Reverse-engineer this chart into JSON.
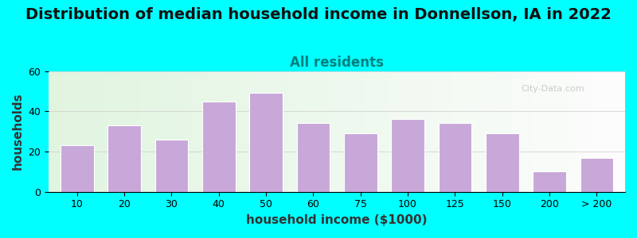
{
  "title": "Distribution of median household income in Donnellson, IA in 2022",
  "subtitle": "All residents",
  "xlabel": "household income ($1000)",
  "ylabel": "households",
  "background_outer": "#00FFFF",
  "background_inner_left": "#d8f0d0",
  "background_inner_right": "#f8f8f8",
  "bar_color": "#c8a8d8",
  "bar_edge_color": "#ffffff",
  "categories": [
    "10",
    "20",
    "30",
    "40",
    "50",
    "60",
    "75",
    "100",
    "125",
    "150",
    "200",
    "> 200"
  ],
  "values": [
    23,
    33,
    26,
    45,
    49,
    34,
    29,
    36,
    34,
    29,
    10,
    17
  ],
  "ylim": [
    0,
    60
  ],
  "yticks": [
    0,
    20,
    40,
    60
  ],
  "title_fontsize": 14,
  "subtitle_fontsize": 12,
  "axis_label_fontsize": 11,
  "tick_fontsize": 9,
  "watermark_text": "City-Data.com"
}
